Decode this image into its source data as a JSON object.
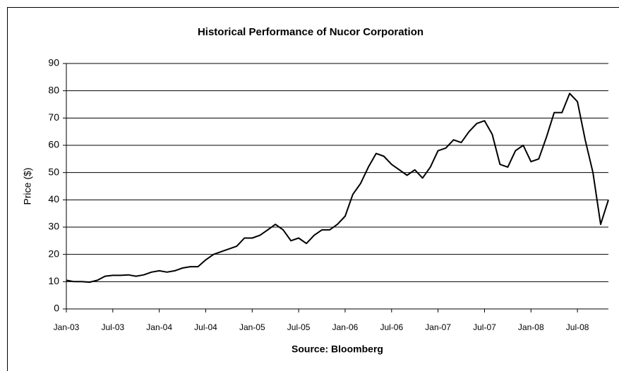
{
  "chart_data": {
    "type": "line",
    "title": "Historical Performance of Nucor Corporation",
    "y_label": "Price ($)",
    "source": "Source: Bloomberg",
    "x": [
      "2003-01",
      "2003-02",
      "2003-03",
      "2003-04",
      "2003-05",
      "2003-06",
      "2003-07",
      "2003-08",
      "2003-09",
      "2003-10",
      "2003-11",
      "2003-12",
      "2004-01",
      "2004-02",
      "2004-03",
      "2004-04",
      "2004-05",
      "2004-06",
      "2004-07",
      "2004-08",
      "2004-09",
      "2004-10",
      "2004-11",
      "2004-12",
      "2005-01",
      "2005-02",
      "2005-03",
      "2005-04",
      "2005-05",
      "2005-06",
      "2005-07",
      "2005-08",
      "2005-09",
      "2005-10",
      "2005-11",
      "2005-12",
      "2006-01",
      "2006-02",
      "2006-03",
      "2006-04",
      "2006-05",
      "2006-06",
      "2006-07",
      "2006-08",
      "2006-09",
      "2006-10",
      "2006-11",
      "2006-12",
      "2007-01",
      "2007-02",
      "2007-03",
      "2007-04",
      "2007-05",
      "2007-06",
      "2007-07",
      "2007-08",
      "2007-09",
      "2007-10",
      "2007-11",
      "2007-12",
      "2008-01",
      "2008-02",
      "2008-03",
      "2008-04",
      "2008-05",
      "2008-06",
      "2008-07",
      "2008-08",
      "2008-09",
      "2008-10",
      "2008-11"
    ],
    "series": [
      {
        "name": "Nucor",
        "color": "#000000",
        "values": [
          10.5,
          10,
          10,
          9.8,
          10.5,
          12,
          12.3,
          12.3,
          12.5,
          12,
          12.5,
          13.5,
          14,
          13.5,
          14,
          15,
          15.5,
          15.5,
          18,
          20,
          21,
          22,
          23,
          26,
          26,
          27,
          29,
          31,
          29,
          25,
          26,
          24,
          27,
          29,
          29,
          31,
          34,
          42,
          46,
          52,
          57,
          56,
          53,
          51,
          49,
          51,
          48,
          52,
          58,
          59,
          62,
          61,
          65,
          68,
          69,
          64,
          53,
          52,
          58,
          60,
          54,
          55,
          63,
          72,
          72,
          79,
          76,
          62,
          50,
          31,
          40
        ]
      }
    ],
    "xlim": [
      "2003-01",
      "2008-11"
    ],
    "xticks": [
      {
        "value": "2003-01",
        "label": "Jan-03"
      },
      {
        "value": "2003-07",
        "label": "Jul-03"
      },
      {
        "value": "2004-01",
        "label": "Jan-04"
      },
      {
        "value": "2004-07",
        "label": "Jul-04"
      },
      {
        "value": "2005-01",
        "label": "Jan-05"
      },
      {
        "value": "2005-07",
        "label": "Jul-05"
      },
      {
        "value": "2006-01",
        "label": "Jan-06"
      },
      {
        "value": "2006-07",
        "label": "Jul-06"
      },
      {
        "value": "2007-01",
        "label": "Jan-07"
      },
      {
        "value": "2007-07",
        "label": "Jul-07"
      },
      {
        "value": "2008-01",
        "label": "Jan-08"
      },
      {
        "value": "2008-07",
        "label": "Jul-08"
      }
    ],
    "ylim": [
      0,
      90
    ],
    "yticks": [
      0,
      10,
      20,
      30,
      40,
      50,
      60,
      70,
      80,
      90
    ],
    "grid": true
  }
}
